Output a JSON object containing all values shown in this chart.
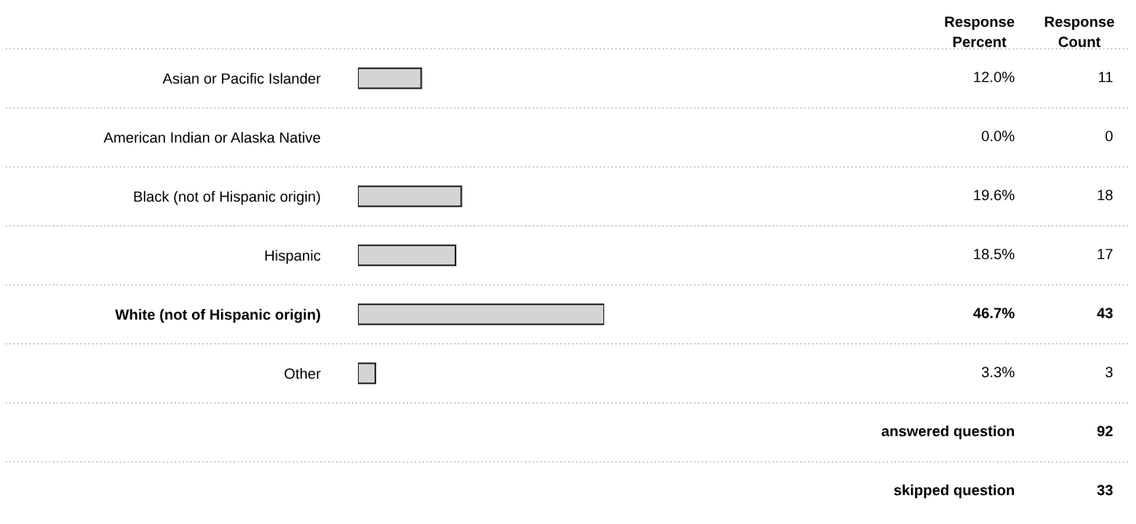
{
  "chart_data": {
    "type": "bar",
    "orientation": "horizontal",
    "tick_labels": "y",
    "categories": [
      "Asian or Pacific Islander",
      "American Indian or Alaska Native",
      "Black (not of Hispanic origin)",
      "Hispanic",
      "White (not of Hispanic origin)",
      "Other"
    ],
    "values": [
      12.0,
      0.0,
      19.6,
      18.5,
      46.7,
      3.3
    ],
    "value_labels": [
      "12.0%",
      "0.0%",
      "19.6%",
      "18.5%",
      "46.7%",
      "3.3%"
    ],
    "color": "#d4d4d4",
    "annotations": [
      "Response\nPercent",
      "Response\nCount",
      "11",
      "0",
      "18",
      "17",
      "43",
      "3",
      "answered question",
      "92",
      "skipped question",
      "33"
    ]
  }
}
